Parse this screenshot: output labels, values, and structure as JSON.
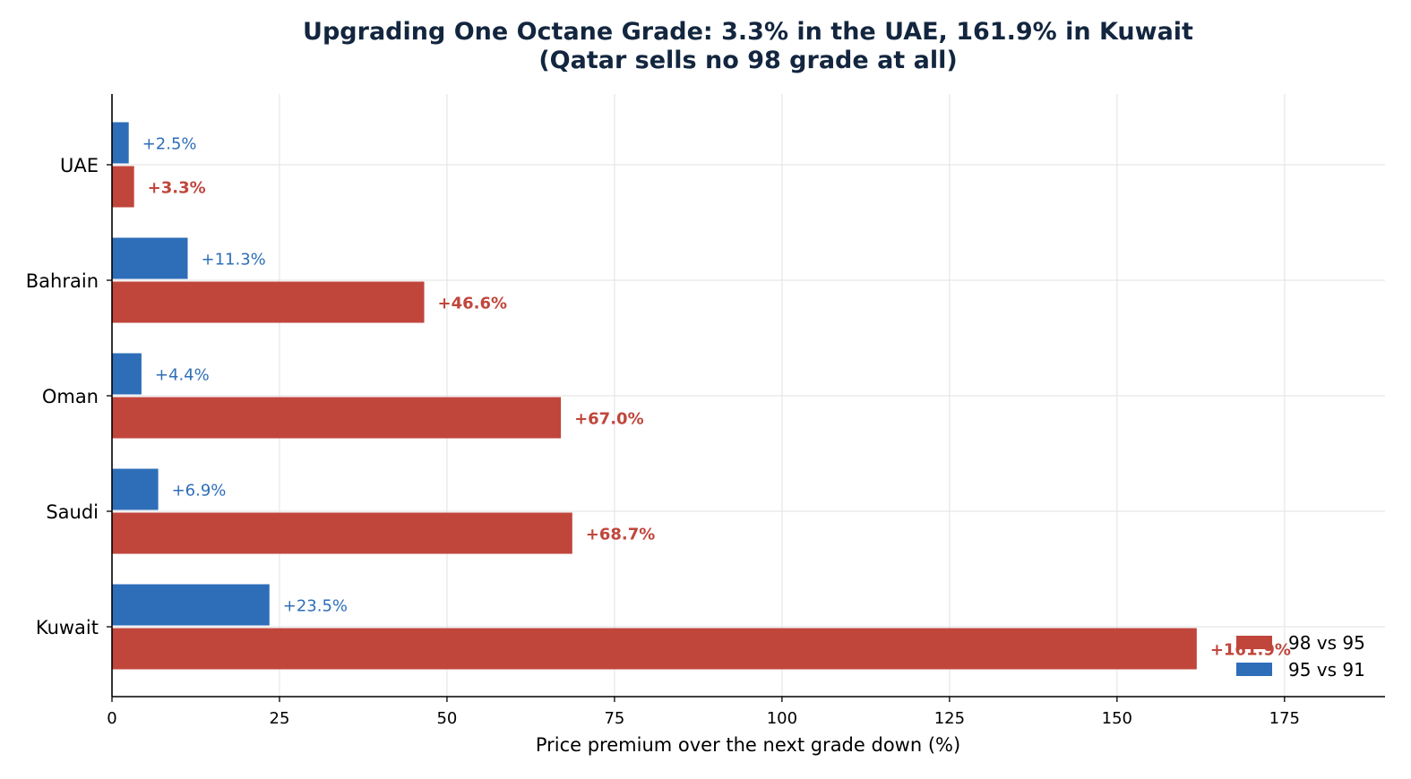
{
  "chart_data": {
    "type": "bar",
    "orientation": "horizontal",
    "title": "Upgrading One Octane Grade: 3.3% in the UAE, 161.9% in Kuwait",
    "subtitle": "(Qatar sells no 98 grade at all)",
    "xlabel": "Price premium over the next grade down (%)",
    "ylabel": "",
    "categories": [
      "UAE",
      "Bahrain",
      "Oman",
      "Saudi",
      "Kuwait"
    ],
    "xlim": [
      0,
      190
    ],
    "xticks": [
      0,
      25,
      50,
      75,
      100,
      125,
      150,
      175
    ],
    "grid": true,
    "legend_position": "lower-right",
    "series": [
      {
        "name": "95 vs 91",
        "color": "#2e6eb8",
        "values": [
          2.5,
          11.3,
          4.4,
          6.9,
          23.5
        ],
        "labels": [
          "+2.5%",
          "+11.3%",
          "+4.4%",
          "+6.9%",
          "+23.5%"
        ]
      },
      {
        "name": "98 vs 95",
        "color": "#c0463c",
        "values": [
          3.3,
          46.6,
          67.0,
          68.7,
          161.9
        ],
        "labels": [
          "+3.3%",
          "+46.6%",
          "+67.0%",
          "+68.7%",
          "+161.9%"
        ]
      }
    ]
  }
}
